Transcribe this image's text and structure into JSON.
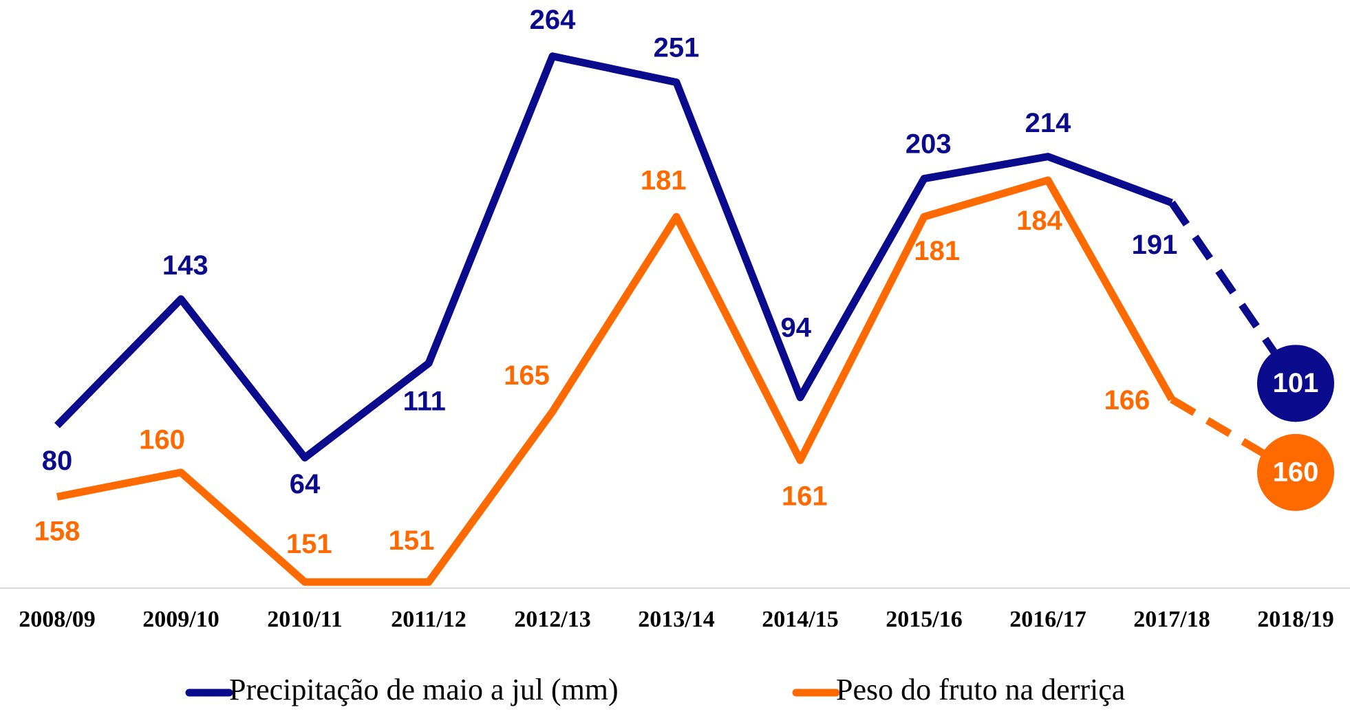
{
  "chart_data": {
    "type": "line",
    "categories": [
      "2008/09",
      "2009/10",
      "2010/11",
      "2011/12",
      "2012/13",
      "2013/14",
      "2014/15",
      "2015/16",
      "2016/17",
      "2017/18",
      "2018/19"
    ],
    "series": [
      {
        "name": "Precipitação de maio a jul (mm)",
        "color": "#0a0a8c",
        "axis": "y",
        "dash_last_segment": true,
        "values": [
          80,
          143,
          64,
          111,
          264,
          251,
          94,
          203,
          214,
          191,
          101
        ]
      },
      {
        "name": "Peso do fruto na derriça",
        "color": "#ff6a00",
        "axis": "y2",
        "dash_last_segment": true,
        "values": [
          158,
          160,
          151,
          151,
          165,
          181,
          161,
          181,
          184,
          166,
          160
        ]
      }
    ],
    "ylim": [
      -1,
      292
    ],
    "y2lim": [
      150.5,
      198.8
    ],
    "legend": "bottom"
  }
}
